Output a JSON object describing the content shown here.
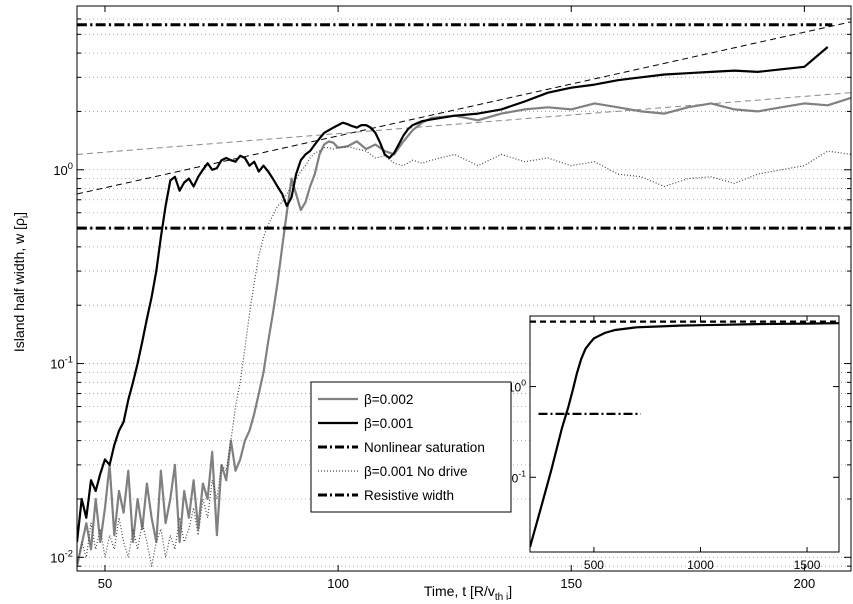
{
  "chart_data": [
    {
      "type": "line",
      "xlabel_main": "Time, t [R/v",
      "xlabel_sub": "th i",
      "xlabel_end": "]",
      "ylabel_main": "Island half width, w [ρ",
      "ylabel_sub": "i",
      "ylabel_end": "]",
      "xlim": [
        44,
        210
      ],
      "ylim": [
        0.0085,
        7
      ],
      "yscale": "log",
      "grid": "y-major-minor-dotted",
      "xticks": [
        {
          "value": 50,
          "label": "50"
        },
        {
          "value": 100,
          "label": "100"
        },
        {
          "value": 150,
          "label": "150"
        },
        {
          "value": 200,
          "label": "200"
        }
      ],
      "yticks": [
        {
          "value": 0.01,
          "base": "10",
          "exp": "-2"
        },
        {
          "value": 0.1,
          "base": "10",
          "exp": "-1"
        },
        {
          "value": 1,
          "base": "10",
          "exp": "0"
        }
      ],
      "series": [
        {
          "name": "β=0.002",
          "color": "#808080",
          "style": "solid",
          "x": [
            44,
            46,
            47,
            48,
            49,
            50,
            51,
            52,
            53,
            54,
            55,
            56,
            57,
            58,
            59,
            60,
            61,
            62,
            63,
            64,
            65,
            66,
            67,
            68,
            69,
            70,
            71,
            72,
            73,
            74,
            75,
            76,
            77,
            78,
            79,
            80,
            81,
            82,
            83,
            84,
            85,
            86,
            87,
            88,
            89,
            90,
            91,
            92,
            93,
            94,
            95,
            96,
            97,
            98,
            99,
            100,
            102,
            104,
            106,
            108,
            110,
            112,
            114,
            116,
            118,
            120,
            125,
            130,
            135,
            140,
            145,
            150,
            155,
            160,
            165,
            170,
            175,
            180,
            185,
            190,
            195,
            200,
            205,
            210
          ],
          "y": [
            0.009,
            0.015,
            0.011,
            0.02,
            0.012,
            0.018,
            0.03,
            0.013,
            0.022,
            0.017,
            0.028,
            0.012,
            0.02,
            0.014,
            0.024,
            0.016,
            0.012,
            0.028,
            0.015,
            0.02,
            0.03,
            0.012,
            0.022,
            0.016,
            0.025,
            0.014,
            0.024,
            0.02,
            0.035,
            0.013,
            0.03,
            0.025,
            0.04,
            0.028,
            0.032,
            0.04,
            0.045,
            0.055,
            0.07,
            0.09,
            0.13,
            0.18,
            0.26,
            0.4,
            0.6,
            0.9,
            0.75,
            0.62,
            0.68,
            0.82,
            0.95,
            1.2,
            1.35,
            1.4,
            1.38,
            1.3,
            1.32,
            1.4,
            1.28,
            1.35,
            1.25,
            1.2,
            1.4,
            1.6,
            1.75,
            1.85,
            1.9,
            1.8,
            1.95,
            2.05,
            2.1,
            2.05,
            2.2,
            2.1,
            2.0,
            1.95,
            2.1,
            2.2,
            2.05,
            2.0,
            2.1,
            2.2,
            2.15,
            2.35
          ]
        },
        {
          "name": "β=0.001",
          "color": "#000000",
          "style": "solid",
          "x": [
            44,
            45,
            46,
            47,
            48,
            49,
            50,
            51,
            52,
            53,
            54,
            55,
            56,
            57,
            58,
            59,
            60,
            61,
            62,
            63,
            64,
            65,
            66,
            67,
            68,
            69,
            70,
            71,
            72,
            73,
            74,
            75,
            76,
            77,
            78,
            79,
            80,
            81,
            82,
            83,
            84,
            85,
            86,
            87,
            88,
            89,
            90,
            91,
            92,
            93,
            94,
            95,
            96,
            97,
            98,
            99,
            100,
            101,
            102,
            103,
            104,
            105,
            106,
            107,
            108,
            109,
            110,
            111,
            112,
            113,
            114,
            115,
            116,
            118,
            120,
            125,
            130,
            135,
            140,
            145,
            150,
            155,
            160,
            165,
            170,
            175,
            180,
            185,
            190,
            195,
            200,
            205
          ],
          "y": [
            0.012,
            0.02,
            0.016,
            0.025,
            0.022,
            0.027,
            0.032,
            0.03,
            0.038,
            0.045,
            0.05,
            0.065,
            0.08,
            0.1,
            0.13,
            0.17,
            0.22,
            0.3,
            0.45,
            0.65,
            0.88,
            0.92,
            0.78,
            0.86,
            0.9,
            0.82,
            0.92,
            1.0,
            1.08,
            1.0,
            1.02,
            1.12,
            1.15,
            1.12,
            1.1,
            1.18,
            1.15,
            1.05,
            1.1,
            0.98,
            1.05,
            0.98,
            0.9,
            0.82,
            0.75,
            0.65,
            0.72,
            0.95,
            1.12,
            1.2,
            1.25,
            1.35,
            1.45,
            1.55,
            1.6,
            1.65,
            1.7,
            1.75,
            1.72,
            1.68,
            1.65,
            1.7,
            1.7,
            1.65,
            1.55,
            1.38,
            1.2,
            1.15,
            1.22,
            1.35,
            1.5,
            1.62,
            1.7,
            1.78,
            1.82,
            1.9,
            1.95,
            2.05,
            2.25,
            2.5,
            2.65,
            2.75,
            2.9,
            3.0,
            3.1,
            3.15,
            3.2,
            3.25,
            3.2,
            3.3,
            3.4,
            4.3
          ]
        },
        {
          "name": "Nonlinear saturation",
          "color": "#000000",
          "style": "dashdot",
          "x": [
            44,
            206
          ],
          "y": [
            5.6,
            5.6
          ]
        },
        {
          "name": "β=0.001 No drive",
          "color": "#444444",
          "style": "dotted",
          "x": [
            44,
            45,
            46,
            47,
            48,
            49,
            50,
            51,
            52,
            53,
            54,
            55,
            56,
            57,
            58,
            59,
            60,
            61,
            62,
            63,
            64,
            65,
            66,
            67,
            68,
            69,
            70,
            71,
            72,
            73,
            74,
            75,
            76,
            77,
            78,
            79,
            80,
            81,
            82,
            83,
            84,
            85,
            86,
            87,
            88,
            89,
            90,
            91,
            92,
            93,
            94,
            95,
            96,
            97,
            98,
            99,
            100,
            102,
            104,
            106,
            108,
            110,
            112,
            114,
            116,
            118,
            120,
            125,
            130,
            135,
            140,
            145,
            150,
            155,
            160,
            165,
            170,
            175,
            180,
            185,
            190,
            195,
            200,
            205,
            210
          ],
          "y": [
            0.009,
            0.012,
            0.01,
            0.015,
            0.011,
            0.014,
            0.01,
            0.013,
            0.011,
            0.016,
            0.012,
            0.01,
            0.014,
            0.011,
            0.015,
            0.012,
            0.009,
            0.012,
            0.014,
            0.01,
            0.013,
            0.011,
            0.016,
            0.012,
            0.014,
            0.018,
            0.013,
            0.02,
            0.016,
            0.025,
            0.02,
            0.03,
            0.028,
            0.04,
            0.06,
            0.08,
            0.12,
            0.18,
            0.26,
            0.36,
            0.45,
            0.52,
            0.58,
            0.65,
            0.68,
            0.75,
            0.82,
            0.9,
            0.98,
            1.05,
            1.15,
            1.22,
            1.25,
            1.3,
            1.3,
            1.28,
            1.3,
            1.32,
            1.28,
            1.25,
            1.15,
            1.18,
            1.08,
            1.05,
            1.12,
            1.08,
            1.12,
            1.2,
            1.05,
            1.2,
            1.1,
            1.15,
            1.05,
            1.1,
            0.95,
            0.92,
            0.82,
            0.9,
            0.92,
            0.85,
            0.95,
            1.0,
            1.05,
            1.25,
            1.2
          ]
        },
        {
          "name": "Resistive width",
          "color": "#000000",
          "style": "dashdot",
          "x": [
            44,
            210
          ],
          "y": [
            0.5,
            0.5
          ]
        }
      ],
      "fit_lines": [
        {
          "color": "#000000",
          "style": "dashed",
          "x": [
            44,
            210
          ],
          "y": [
            0.75,
            5.8
          ]
        },
        {
          "color": "#888888",
          "style": "dashed",
          "x": [
            44,
            210
          ],
          "y": [
            1.2,
            2.5
          ]
        }
      ],
      "legend": {
        "placement": "lower-center",
        "entries": [
          {
            "label": "β=0.002",
            "color": "#808080",
            "style": "solid"
          },
          {
            "label": "β=0.001",
            "color": "#000000",
            "style": "solid"
          },
          {
            "label": "Nonlinear saturation",
            "color": "#000000",
            "style": "dashdot"
          },
          {
            "label": "β=0.001 No drive",
            "color": "#444444",
            "style": "dotted"
          },
          {
            "label": "Resistive width",
            "color": "#000000",
            "style": "dashdot"
          }
        ]
      }
    },
    {
      "type": "line",
      "role": "inset",
      "placement": "lower-right",
      "xlim": [
        200,
        1650
      ],
      "ylim": [
        0.015,
        6
      ],
      "yscale": "log",
      "xticks": [
        {
          "value": 500,
          "label": "500"
        },
        {
          "value": 1000,
          "label": "1000"
        },
        {
          "value": 1500,
          "label": "1500"
        }
      ],
      "yticks": [
        {
          "value": 0.1,
          "base": "10",
          "exp": "-1"
        },
        {
          "value": 1,
          "base": "10",
          "exp": "0"
        }
      ],
      "series": [
        {
          "color": "#000000",
          "style": "solid",
          "x": [
            200,
            250,
            300,
            350,
            380,
            400,
            420,
            440,
            460,
            480,
            500,
            550,
            600,
            700,
            800,
            900,
            1000,
            1100,
            1200,
            1300,
            1400,
            1500,
            1650
          ],
          "y": [
            0.017,
            0.045,
            0.12,
            0.35,
            0.6,
            0.9,
            1.4,
            2.0,
            2.6,
            3.0,
            3.4,
            3.9,
            4.2,
            4.5,
            4.6,
            4.7,
            4.75,
            4.8,
            4.85,
            4.9,
            4.92,
            4.95,
            5.0
          ]
        },
        {
          "color": "#000000",
          "style": "dashed",
          "x": [
            200,
            1650
          ],
          "y": [
            5.2,
            5.2
          ]
        },
        {
          "color": "#000000",
          "style": "dashdot",
          "x": [
            240,
            720
          ],
          "y": [
            0.5,
            0.5
          ]
        }
      ]
    }
  ]
}
